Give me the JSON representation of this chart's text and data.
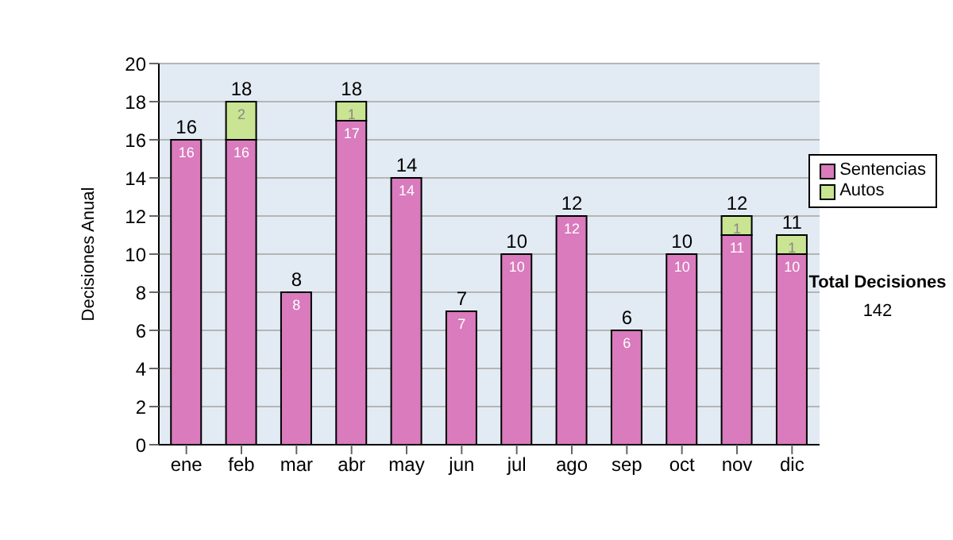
{
  "chart_data": {
    "type": "bar",
    "stacked": true,
    "ylabel": "Decisiones Anual",
    "categories": [
      "ene",
      "feb",
      "mar",
      "abr",
      "may",
      "jun",
      "jul",
      "ago",
      "sep",
      "oct",
      "nov",
      "dic"
    ],
    "series": [
      {
        "name": "Sentencias",
        "color": "#d97bbd",
        "values": [
          16,
          16,
          8,
          17,
          14,
          7,
          10,
          12,
          6,
          10,
          11,
          10
        ],
        "value_labels": [
          "16",
          "16",
          "8",
          "17",
          "14",
          "7",
          "10",
          "12",
          "6",
          "10",
          "11",
          "10"
        ]
      },
      {
        "name": "Autos",
        "color": "#c9e492",
        "values": [
          0,
          2,
          0,
          1,
          0,
          0,
          0,
          0,
          0,
          0,
          1,
          1
        ],
        "value_labels": [
          null,
          "2",
          null,
          "1",
          null,
          null,
          null,
          null,
          null,
          null,
          "1",
          "1"
        ]
      }
    ],
    "totals": [
      "16",
      "18",
      "8",
      "18",
      "14",
      "7",
      "10",
      "12",
      "6",
      "10",
      "12",
      "11"
    ],
    "ylim": [
      0,
      20
    ],
    "yticks": [
      0,
      2,
      4,
      6,
      8,
      10,
      12,
      14,
      16,
      18,
      20
    ],
    "grid": "y",
    "legend": "right",
    "annotations": [
      "Total Decisiones",
      "142"
    ]
  }
}
